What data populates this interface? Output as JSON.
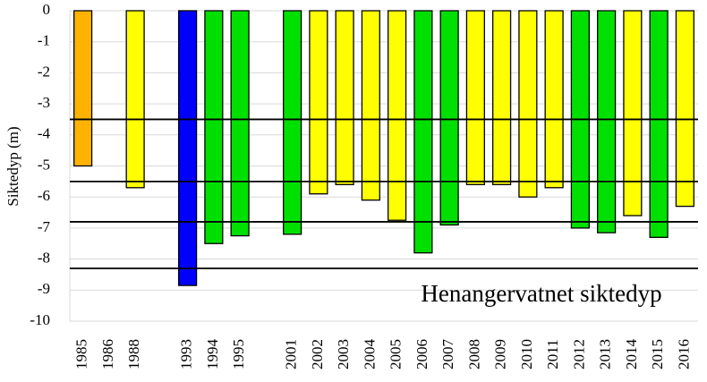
{
  "chart_data": {
    "type": "bar",
    "y_label": "Siktedyp (m)",
    "annotation": "Henangervatnet siktedyp",
    "categories": [
      "1985",
      "1986",
      "1988",
      null,
      "1993",
      "1994",
      "1995",
      null,
      "2001",
      "2002",
      "2003",
      "2004",
      "2005",
      "2006",
      "2007",
      "2008",
      "2009",
      "2010",
      "2011",
      "2012",
      "2013",
      "2014",
      "2015",
      "2016"
    ],
    "values": [
      -5.0,
      null,
      -5.7,
      null,
      -8.85,
      -7.5,
      -7.25,
      null,
      -7.2,
      -5.9,
      -5.6,
      -6.1,
      -6.75,
      -7.8,
      -6.9,
      -5.6,
      -5.6,
      -6.0,
      -5.7,
      -7.0,
      -7.15,
      -6.6,
      -7.3,
      -6.3
    ],
    "colors": [
      "#ffb300",
      null,
      "#ffff00",
      null,
      "#0000ff",
      "#00e000",
      "#00e000",
      null,
      "#00e000",
      "#ffff00",
      "#ffff00",
      "#ffff00",
      "#ffff00",
      "#00e000",
      "#00e000",
      "#ffff00",
      "#ffff00",
      "#ffff00",
      "#ffff00",
      "#00e000",
      "#00e000",
      "#ffff00",
      "#00e000",
      "#ffff00"
    ],
    "reference_lines": [
      -3.5,
      -5.5,
      -6.8,
      -8.3
    ],
    "ylim": [
      -10,
      0
    ],
    "yticks": [
      0,
      -1,
      -2,
      -3,
      -4,
      -5,
      -6,
      -7,
      -8,
      -9,
      -10
    ],
    "grid": true
  }
}
